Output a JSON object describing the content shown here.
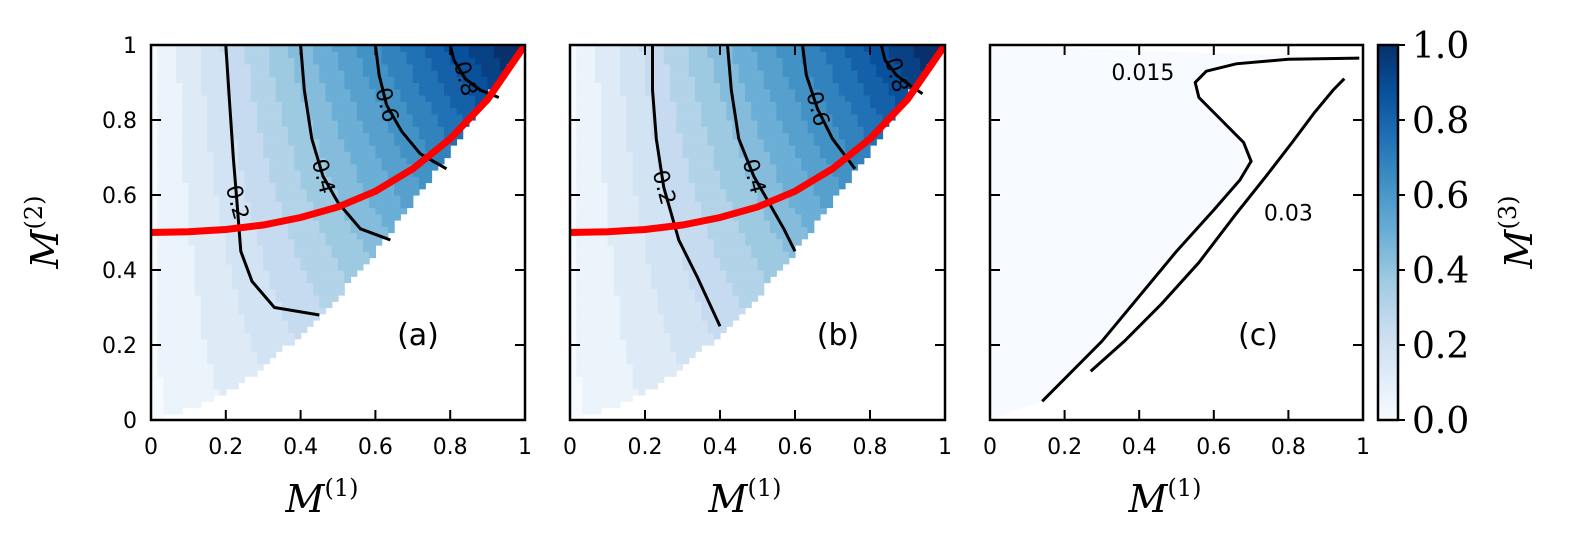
{
  "chart_data": [
    {
      "type": "contour",
      "panel_label": "(a)",
      "xlabel": "M",
      "xlabel_sup": "(1)",
      "ylabel": "M",
      "ylabel_sup": "(2)",
      "xlim": [
        0,
        1
      ],
      "ylim": [
        0,
        1
      ],
      "xticks": [
        "0",
        "0.2",
        "0.4",
        "0.6",
        "0.8",
        "1"
      ],
      "yticks": [
        "0",
        "0.2",
        "0.4",
        "0.6",
        "0.8",
        "1"
      ],
      "domain_boundary_lower_y": [
        [
          0,
          0
        ],
        [
          0.1,
          0.03
        ],
        [
          0.2,
          0.07
        ],
        [
          0.3,
          0.14
        ],
        [
          0.4,
          0.23
        ],
        [
          0.5,
          0.33
        ],
        [
          0.6,
          0.45
        ],
        [
          0.7,
          0.58
        ],
        [
          0.8,
          0.72
        ],
        [
          0.9,
          0.87
        ],
        [
          1.0,
          1.0
        ]
      ],
      "contours": [
        {
          "level": "0.2",
          "points": [
            [
              0.2,
              1.0
            ],
            [
              0.21,
              0.85
            ],
            [
              0.22,
              0.7
            ],
            [
              0.23,
              0.58
            ],
            [
              0.24,
              0.45
            ],
            [
              0.27,
              0.37
            ],
            [
              0.33,
              0.3
            ],
            [
              0.45,
              0.28
            ]
          ]
        },
        {
          "level": "0.4",
          "points": [
            [
              0.4,
              1.0
            ],
            [
              0.41,
              0.88
            ],
            [
              0.43,
              0.75
            ],
            [
              0.46,
              0.65
            ],
            [
              0.5,
              0.58
            ],
            [
              0.56,
              0.51
            ],
            [
              0.64,
              0.48
            ]
          ]
        },
        {
          "level": "0.6",
          "points": [
            [
              0.6,
              1.0
            ],
            [
              0.61,
              0.92
            ],
            [
              0.63,
              0.84
            ],
            [
              0.67,
              0.77
            ],
            [
              0.72,
              0.71
            ],
            [
              0.79,
              0.67
            ]
          ]
        },
        {
          "level": "0.8",
          "points": [
            [
              0.8,
              1.0
            ],
            [
              0.81,
              0.96
            ],
            [
              0.84,
              0.91
            ],
            [
              0.88,
              0.88
            ],
            [
              0.93,
              0.86
            ]
          ]
        }
      ],
      "red_curve": [
        [
          0,
          0.5
        ],
        [
          0.1,
          0.502
        ],
        [
          0.2,
          0.508
        ],
        [
          0.3,
          0.52
        ],
        [
          0.4,
          0.54
        ],
        [
          0.5,
          0.568
        ],
        [
          0.6,
          0.61
        ],
        [
          0.7,
          0.67
        ],
        [
          0.8,
          0.75
        ],
        [
          0.9,
          0.855
        ],
        [
          1.0,
          1.0
        ]
      ]
    },
    {
      "type": "contour",
      "panel_label": "(b)",
      "xlabel": "M",
      "xlabel_sup": "(1)",
      "xlim": [
        0,
        1
      ],
      "ylim": [
        0,
        1
      ],
      "xticks": [
        "0",
        "0.2",
        "0.4",
        "0.6",
        "0.8",
        "1"
      ],
      "domain_boundary_lower_y": [
        [
          0,
          0
        ],
        [
          0.1,
          0.03
        ],
        [
          0.2,
          0.07
        ],
        [
          0.3,
          0.14
        ],
        [
          0.4,
          0.23
        ],
        [
          0.5,
          0.33
        ],
        [
          0.6,
          0.45
        ],
        [
          0.7,
          0.58
        ],
        [
          0.8,
          0.72
        ],
        [
          0.9,
          0.87
        ],
        [
          1.0,
          1.0
        ]
      ],
      "contours": [
        {
          "level": "0.2",
          "points": [
            [
              0.22,
              1.0
            ],
            [
              0.22,
              0.88
            ],
            [
              0.23,
              0.75
            ],
            [
              0.25,
              0.62
            ],
            [
              0.29,
              0.48
            ],
            [
              0.34,
              0.38
            ],
            [
              0.4,
              0.25
            ]
          ]
        },
        {
          "level": "0.4",
          "points": [
            [
              0.42,
              1.0
            ],
            [
              0.43,
              0.88
            ],
            [
              0.45,
              0.75
            ],
            [
              0.49,
              0.65
            ],
            [
              0.53,
              0.58
            ],
            [
              0.57,
              0.51
            ],
            [
              0.6,
              0.45
            ]
          ]
        },
        {
          "level": "0.6",
          "points": [
            [
              0.62,
              1.0
            ],
            [
              0.63,
              0.92
            ],
            [
              0.66,
              0.83
            ],
            [
              0.7,
              0.75
            ],
            [
              0.76,
              0.67
            ]
          ]
        },
        {
          "level": "0.8",
          "points": [
            [
              0.83,
              1.0
            ],
            [
              0.84,
              0.96
            ],
            [
              0.87,
              0.92
            ],
            [
              0.91,
              0.89
            ],
            [
              0.94,
              0.87
            ]
          ]
        }
      ],
      "red_curve": [
        [
          0,
          0.5
        ],
        [
          0.1,
          0.502
        ],
        [
          0.2,
          0.508
        ],
        [
          0.3,
          0.52
        ],
        [
          0.4,
          0.54
        ],
        [
          0.5,
          0.568
        ],
        [
          0.6,
          0.61
        ],
        [
          0.7,
          0.67
        ],
        [
          0.8,
          0.75
        ],
        [
          0.9,
          0.855
        ],
        [
          1.0,
          1.0
        ]
      ]
    },
    {
      "type": "contour",
      "panel_label": "(c)",
      "xlabel": "M",
      "xlabel_sup": "(1)",
      "xlim": [
        0,
        1
      ],
      "ylim": [
        0,
        1
      ],
      "xticks": [
        "0",
        "0.2",
        "0.4",
        "0.6",
        "0.8",
        "1"
      ],
      "contours": [
        {
          "level": "0.015",
          "points": [
            [
              0.14,
              0.05
            ],
            [
              0.2,
              0.11
            ],
            [
              0.3,
              0.21
            ],
            [
              0.4,
              0.33
            ],
            [
              0.5,
              0.45
            ],
            [
              0.6,
              0.56
            ],
            [
              0.67,
              0.64
            ],
            [
              0.7,
              0.69
            ],
            [
              0.68,
              0.74
            ],
            [
              0.62,
              0.8
            ],
            [
              0.56,
              0.86
            ],
            [
              0.55,
              0.9
            ],
            [
              0.58,
              0.93
            ],
            [
              0.66,
              0.95
            ],
            [
              0.8,
              0.962
            ],
            [
              0.99,
              0.965
            ]
          ]
        },
        {
          "level": "0.03",
          "points": [
            [
              0.27,
              0.13
            ],
            [
              0.36,
              0.21
            ],
            [
              0.46,
              0.31
            ],
            [
              0.56,
              0.42
            ],
            [
              0.66,
              0.55
            ],
            [
              0.74,
              0.65
            ],
            [
              0.81,
              0.74
            ],
            [
              0.87,
              0.82
            ],
            [
              0.92,
              0.88
            ],
            [
              0.95,
              0.91
            ]
          ]
        }
      ]
    }
  ],
  "colorbar": {
    "label": "M",
    "label_sup": "(3)",
    "ticks": [
      "0.0",
      "0.2",
      "0.4",
      "0.6",
      "0.8",
      "1.0"
    ],
    "range": [
      0,
      1
    ],
    "colormap": "Blues",
    "color_low": "#f7fbff",
    "color_high": "#08306b"
  },
  "colors": {
    "red_curve": "#ff0000",
    "contour_line": "#000000"
  }
}
